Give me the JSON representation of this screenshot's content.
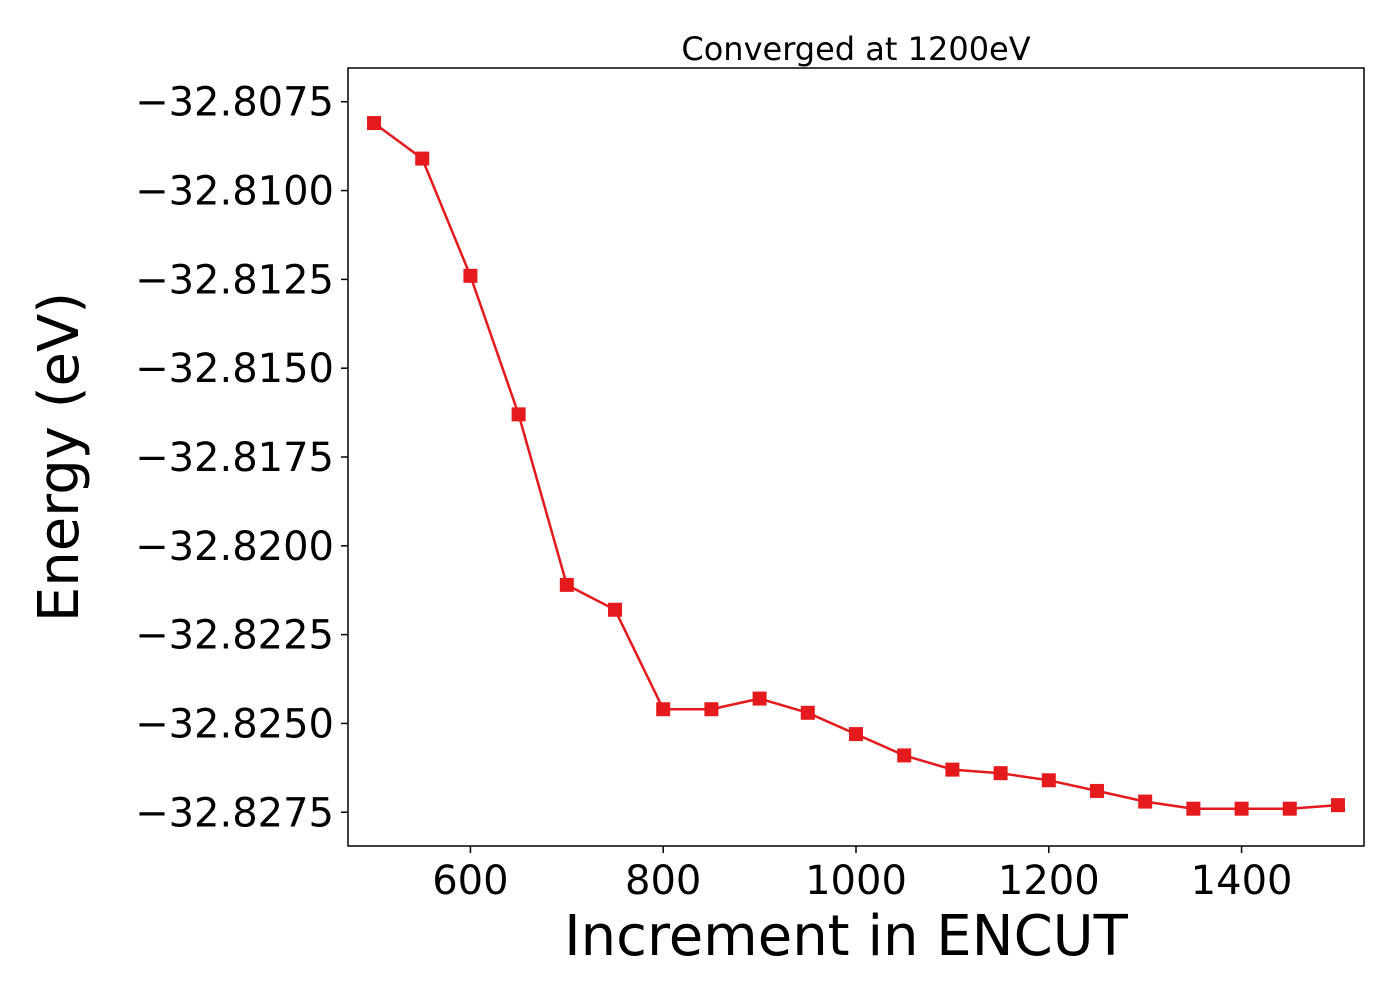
{
  "chart_data": {
    "type": "line",
    "title": "Converged at 1200eV",
    "xlabel": "Increment in ENCUT",
    "ylabel": "Energy (eV)",
    "xlim": [
      473,
      1527
    ],
    "ylim": [
      -32.82845,
      -32.80655
    ],
    "xticks": [
      600,
      800,
      1000,
      1200,
      1400
    ],
    "xtick_labels": [
      "600",
      "800",
      "1000",
      "1200",
      "1400"
    ],
    "yticks": [
      -32.8075,
      -32.81,
      -32.8125,
      -32.815,
      -32.8175,
      -32.82,
      -32.8225,
      -32.825,
      -32.8275
    ],
    "ytick_labels": [
      "−32.8075",
      "−32.8100",
      "−32.8125",
      "−32.8150",
      "−32.8175",
      "−32.8200",
      "−32.8225",
      "−32.8250",
      "−32.8275"
    ],
    "grid": false,
    "marker": "square",
    "color": "#e41a1c",
    "series": [
      {
        "x": [
          500,
          550,
          600,
          650,
          700,
          750,
          800,
          850,
          900,
          950,
          1000,
          1050,
          1100,
          1150,
          1200,
          1250,
          1300,
          1350,
          1400,
          1450,
          1500
        ],
        "values": [
          -32.8081,
          -32.8091,
          -32.8124,
          -32.8163,
          -32.8211,
          -32.8218,
          -32.8246,
          -32.8246,
          -32.8243,
          -32.8247,
          -32.8253,
          -32.8259,
          -32.8263,
          -32.8264,
          -32.8266,
          -32.8269,
          -32.8272,
          -32.8274,
          -32.8274,
          -32.8274,
          -32.8273
        ]
      }
    ]
  }
}
